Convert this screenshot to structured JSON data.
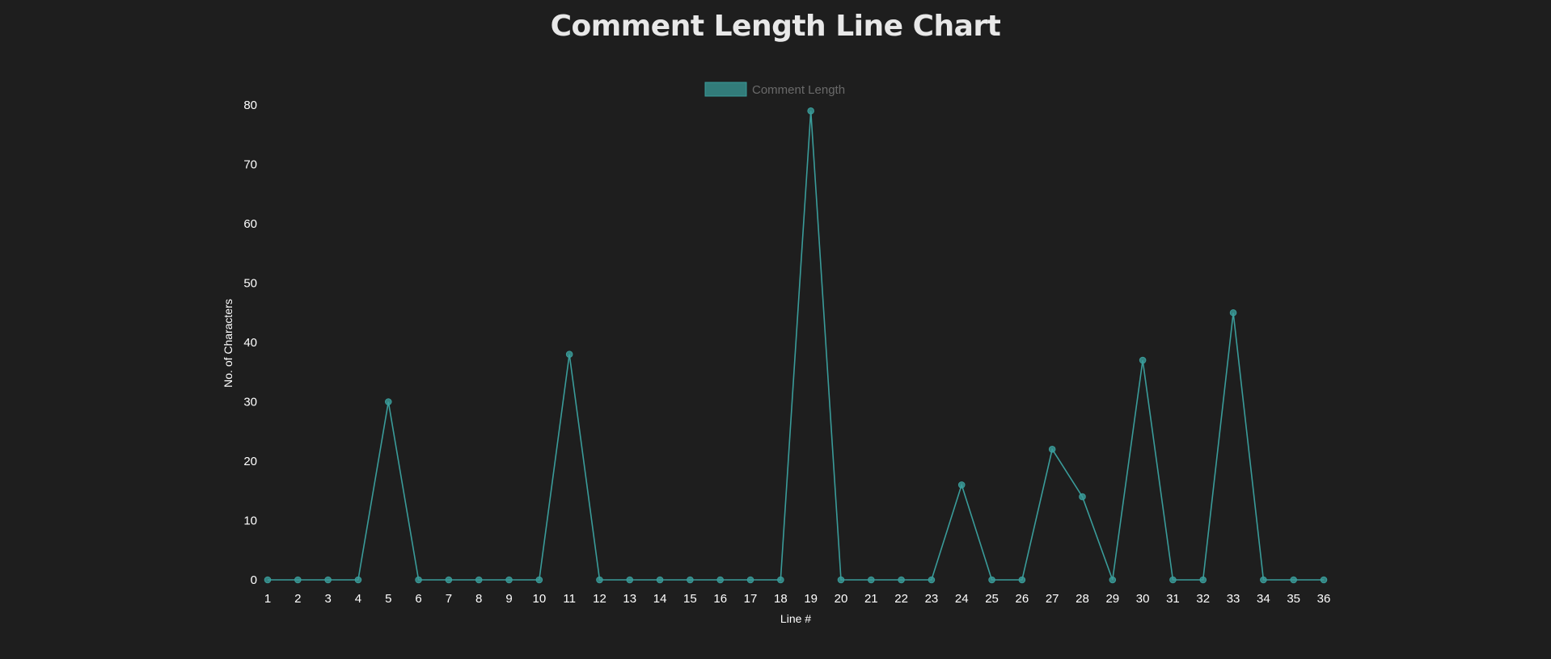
{
  "page": {
    "title": "Comment Length Line Chart"
  },
  "chart_data": {
    "type": "line",
    "xlabel": "Line #",
    "ylabel": "No. of Characters",
    "ylim": [
      0,
      80
    ],
    "y_ticks": [
      0,
      10,
      20,
      30,
      40,
      50,
      60,
      70,
      80
    ],
    "grid": false,
    "legend_position": "top-center",
    "categories": [
      "1",
      "2",
      "3",
      "4",
      "5",
      "6",
      "7",
      "8",
      "9",
      "10",
      "11",
      "12",
      "13",
      "14",
      "15",
      "16",
      "17",
      "18",
      "19",
      "20",
      "21",
      "22",
      "23",
      "24",
      "25",
      "26",
      "27",
      "28",
      "29",
      "30",
      "31",
      "32",
      "33",
      "34",
      "35",
      "36"
    ],
    "series": [
      {
        "name": "Comment Length",
        "color": "#3a9c9a",
        "values": [
          0,
          0,
          0,
          0,
          30,
          0,
          0,
          0,
          0,
          0,
          38,
          0,
          0,
          0,
          0,
          0,
          0,
          0,
          79,
          0,
          0,
          0,
          0,
          16,
          0,
          0,
          22,
          14,
          0,
          37,
          0,
          0,
          45,
          0,
          0,
          0
        ]
      }
    ]
  }
}
